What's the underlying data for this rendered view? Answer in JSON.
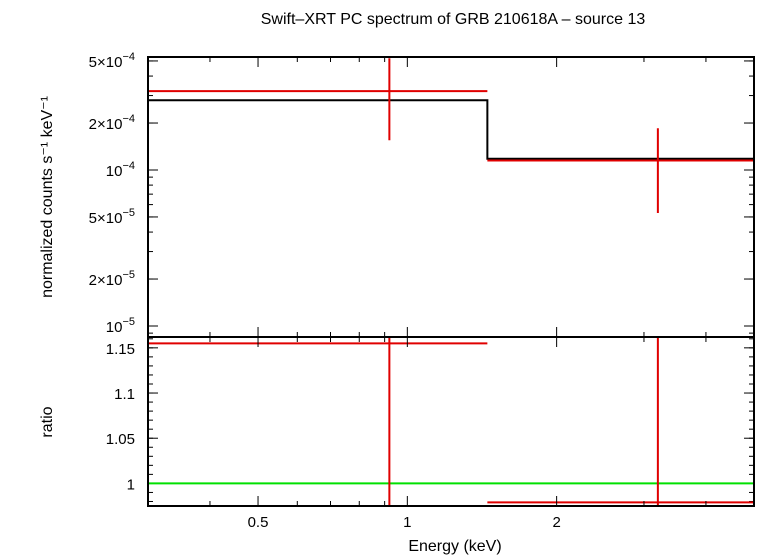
{
  "chart_data": {
    "type": "line",
    "title": "Swift–XRT PC spectrum of GRB 210618A – source 13",
    "xlabel": "Energy (keV)",
    "x_scale": "log",
    "x_ticks": [
      "0.5",
      "1",
      "2"
    ],
    "xlim": [
      0.3,
      5.0
    ],
    "panels": [
      {
        "name": "spectrum",
        "ylabel": "normalized counts s⁻¹ keV⁻¹",
        "y_scale": "log",
        "ylim": [
          8.5e-06,
          0.00053
        ],
        "y_ticks": [
          {
            "value": 1e-05,
            "mantissa": "",
            "exp": "−5"
          },
          {
            "value": 2e-05,
            "mantissa": "2",
            "exp": "−5"
          },
          {
            "value": 5e-05,
            "mantissa": "5",
            "exp": "−5"
          },
          {
            "value": 0.0001,
            "mantissa": "",
            "exp": "−4"
          },
          {
            "value": 0.0002,
            "mantissa": "2",
            "exp": "−4"
          },
          {
            "value": 0.0005,
            "mantissa": "5",
            "exp": "−4"
          }
        ],
        "data_points": [
          {
            "x": 0.92,
            "x_lo": 0.3,
            "x_hi": 1.45,
            "y": 0.00032,
            "y_lo": 0.000155,
            "y_hi": 0.00052
          },
          {
            "x": 3.2,
            "x_lo": 1.45,
            "x_hi": 5.0,
            "y": 0.000115,
            "y_lo": 5.3e-05,
            "y_hi": 0.000185
          }
        ],
        "model_steps": [
          {
            "x_lo": 0.3,
            "x_hi": 1.45,
            "y": 0.00028
          },
          {
            "x_lo": 1.45,
            "x_hi": 5.0,
            "y": 0.000118
          }
        ]
      },
      {
        "name": "ratio",
        "ylabel": "ratio",
        "y_scale": "linear",
        "ylim": [
          0.975,
          1.162
        ],
        "y_ticks": [
          {
            "value": 1.0,
            "label": "1"
          },
          {
            "value": 1.05,
            "label": "1.05"
          },
          {
            "value": 1.1,
            "label": "1.1"
          },
          {
            "value": 1.15,
            "label": "1.15"
          }
        ],
        "reference_line": 1.0,
        "data_points": [
          {
            "x": 0.92,
            "x_lo": 0.3,
            "x_hi": 1.45,
            "y": 1.155,
            "y_lo": 0.9,
            "y_hi": 1.2
          },
          {
            "x": 3.2,
            "x_lo": 1.45,
            "x_hi": 5.0,
            "y": 0.979,
            "y_lo": 0.9,
            "y_hi": 1.2
          }
        ]
      }
    ],
    "colors": {
      "data": "#e00000",
      "model": "#000000",
      "reference": "#00e000"
    }
  }
}
